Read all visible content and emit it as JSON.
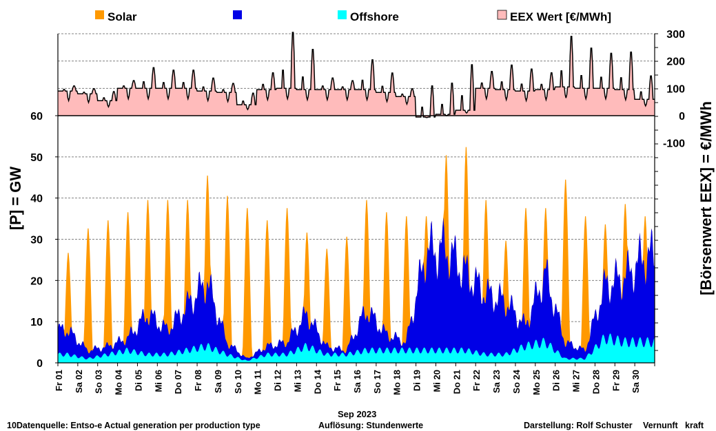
{
  "colors": {
    "solar": "#FF9900",
    "wind": "#0000E6",
    "offshore": "#00FFFF",
    "eex_fill": "#FFBBBB",
    "eex_line": "#000000",
    "neg_label": "#FF0000",
    "brand_green": "#33CC33"
  },
  "legend": [
    {
      "label": "Solar",
      "color": "#FF9900"
    },
    {
      "label": "",
      "color": "#0000E6"
    },
    {
      "label": "Offshore",
      "color": "#00FFFF"
    },
    {
      "label": "EEX Wert [€/MWh]",
      "color": "#FFBBBB"
    }
  ],
  "footer": {
    "source": "10Datenquelle: Entso-e  Actual generation per production type",
    "resolution": "Auflösung: Stundenwerte",
    "author_prefix": "Darstellung:  Rolf Schuster",
    "brand_part1": "Vernunft",
    "brand_part2": "kraft"
  },
  "chart_data": {
    "type": "area",
    "xlabel": "Sep 2023",
    "ylabel_left": "[P]  = GW",
    "ylabel_right": "[Börsenwert  EEX]  = €/MWh",
    "ylim_left": [
      0,
      60
    ],
    "yticks_left": [
      "0",
      "10",
      "20",
      "30",
      "40",
      "50",
      "60"
    ],
    "yticks_right": [
      "300",
      "200",
      "100",
      "0",
      "-100"
    ],
    "y_right_range": [
      -100,
      300
    ],
    "grid": true,
    "legend_position": "top",
    "days": [
      "Fr 01",
      "Sa 02",
      "So 03",
      "Mo 04",
      "Di 05",
      "Mi 06",
      "Do 07",
      "Fr 08",
      "Sa 09",
      "So 10",
      "Mo 11",
      "Di 12",
      "Mi 13",
      "Do 14",
      "Fr 15",
      "Sa 16",
      "So 17",
      "Mo 18",
      "Di 19",
      "Mi 20",
      "Do 21",
      "Fr 22",
      "Sa 23",
      "So 24",
      "Mo 25",
      "Di 26",
      "Mi 27",
      "Do 28",
      "Fr 29",
      "Sa 30"
    ],
    "series": [
      {
        "name": "Solar",
        "kind": "daily_peak_GW",
        "values": [
          27,
          33,
          35,
          37,
          40,
          40,
          40,
          46,
          41,
          38,
          35,
          38,
          32,
          28,
          31,
          40,
          37,
          36,
          36,
          51,
          53,
          40,
          30,
          38,
          38,
          45,
          36,
          34,
          39,
          36
        ]
      },
      {
        "name": "",
        "kind": "daily_level_GW",
        "values": [
          8,
          3,
          4,
          6,
          12,
          8,
          14,
          20,
          5,
          1,
          4,
          5,
          12,
          4,
          3,
          13,
          7,
          5,
          27,
          28,
          22,
          17,
          15,
          9,
          22,
          5,
          3,
          19,
          21,
          26
        ]
      },
      {
        "name": "Offshore",
        "kind": "daily_level_GW",
        "values": [
          2,
          1,
          2,
          3,
          2,
          2,
          3,
          4,
          2,
          0.5,
          2,
          2,
          4,
          2,
          2,
          3,
          3,
          3,
          3,
          3,
          3,
          2,
          2,
          4,
          5,
          1,
          1,
          6,
          5,
          5
        ]
      },
      {
        "name": "EEX Wert [€/MWh]",
        "kind": "daily_evening_peak_eur",
        "values": [
          110,
          100,
          90,
          130,
          180,
          170,
          170,
          140,
          120,
          85,
          160,
          320,
          250,
          140,
          130,
          210,
          160,
          100,
          115,
          125,
          195,
          165,
          190,
          175,
          160,
          300,
          255,
          235,
          240,
          150
        ],
        "daily_base": [
          90,
          80,
          55,
          100,
          100,
          100,
          100,
          90,
          85,
          40,
          95,
          100,
          95,
          95,
          95,
          95,
          85,
          70,
          -5,
          5,
          20,
          100,
          95,
          90,
          95,
          105,
          100,
          100,
          95,
          60
        ]
      }
    ]
  }
}
